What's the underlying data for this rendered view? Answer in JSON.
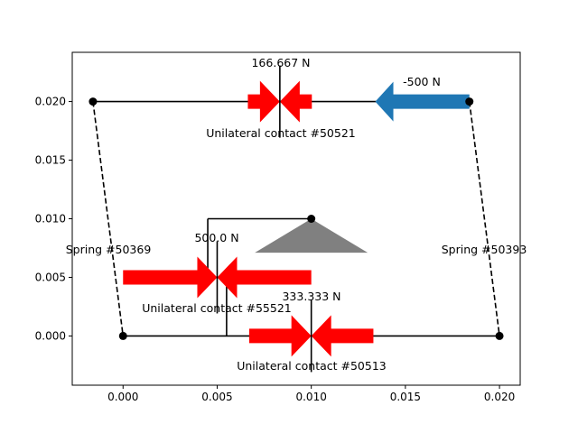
{
  "colors": {
    "member": "#000000",
    "contact_force": "#ff0000",
    "applied_force": "#1f77b4",
    "support": "#808080"
  },
  "chart_data": {
    "type": "diagram",
    "xlim": [
      -0.0027,
      0.0211
    ],
    "ylim": [
      -0.0042,
      0.0242
    ],
    "x_ticks": [
      "0.000",
      "0.005",
      "0.010",
      "0.015",
      "0.020"
    ],
    "y_ticks": [
      "0.000",
      "0.005",
      "0.010",
      "0.015",
      "0.020"
    ],
    "grid": false,
    "nodes": [
      {
        "id": "n1",
        "x": -0.0016,
        "y": 0.02
      },
      {
        "id": "n2",
        "x": 0.0184,
        "y": 0.02
      },
      {
        "id": "n3",
        "x": 0.0,
        "y": 0.0
      },
      {
        "id": "n4",
        "x": 0.02,
        "y": 0.0
      },
      {
        "id": "n5",
        "x": 0.01,
        "y": 0.01
      }
    ],
    "members": [
      {
        "from": [
          -0.0016,
          0.02
        ],
        "to": [
          0.0184,
          0.02
        ],
        "style": "solid"
      },
      {
        "from": [
          0.0,
          0.0
        ],
        "to": [
          0.02,
          0.0
        ],
        "style": "solid"
      },
      {
        "from": [
          -0.0016,
          0.02
        ],
        "to": [
          0.0,
          0.0
        ],
        "style": "dashed"
      },
      {
        "from": [
          0.0184,
          0.02
        ],
        "to": [
          0.02,
          0.0
        ],
        "style": "dashed"
      },
      {
        "from": [
          0.0045,
          0.01
        ],
        "to": [
          0.01,
          0.01
        ],
        "style": "solid"
      },
      {
        "from": [
          0.0045,
          0.01
        ],
        "to": [
          0.0045,
          0.005
        ],
        "style": "solid"
      },
      {
        "from": [
          0.0045,
          0.005
        ],
        "to": [
          0.0055,
          0.005
        ],
        "style": "solid"
      },
      {
        "from": [
          0.0055,
          0.005
        ],
        "to": [
          0.0055,
          0.0
        ],
        "style": "solid"
      }
    ],
    "support": {
      "apex": [
        0.01,
        0.01
      ],
      "base_left": [
        0.007,
        0.0071
      ],
      "base_right": [
        0.013,
        0.0071
      ]
    },
    "contact_forces": [
      {
        "label": "Unilateral contact #50521",
        "value": "166.667 N",
        "x": 0.00833,
        "y": 0.02,
        "half_length": 0.0017
      },
      {
        "label": "Unilateral contact #55521",
        "value": "500.0 N",
        "x": 0.005,
        "y": 0.005,
        "half_length": 0.005
      },
      {
        "label": "Unilateral contact #50513",
        "value": "333.333 N",
        "x": 0.01,
        "y": 0.0,
        "half_length": 0.0033
      }
    ],
    "applied_forces": [
      {
        "value": "-500 N",
        "x": 0.0184,
        "y": 0.02,
        "dx": -0.005
      }
    ],
    "springs": [
      {
        "label": "Spring #50369"
      },
      {
        "label": "Spring #50393"
      }
    ]
  }
}
